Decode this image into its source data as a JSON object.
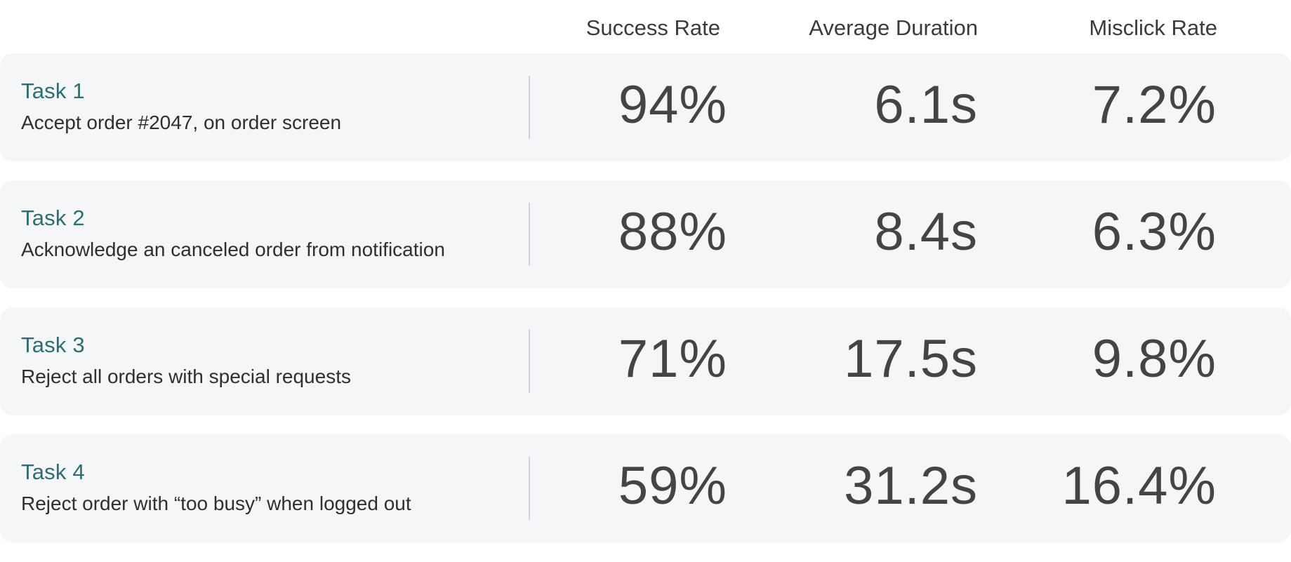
{
  "header": {
    "columns": {
      "success": "Success Rate",
      "duration": "Average Duration",
      "misclick": "Misclick Rate"
    }
  },
  "tasks": [
    {
      "title": "Task 1",
      "description": "Accept order #2047, on order screen",
      "success": "94%",
      "duration": "6.1s",
      "misclick": "7.2%"
    },
    {
      "title": "Task 2",
      "description": "Acknowledge an canceled order from notification",
      "success": "88%",
      "duration": "8.4s",
      "misclick": "6.3%"
    },
    {
      "title": "Task 3",
      "description": "Reject all orders with special requests",
      "success": "71%",
      "duration": "17.5s",
      "misclick": "9.8%"
    },
    {
      "title": "Task 4",
      "description": "Reject order with “too busy” when logged out",
      "success": "59%",
      "duration": "31.2s",
      "misclick": "16.4%"
    }
  ],
  "colors": {
    "task_title": "#2d6e70",
    "row_background": "#f5f6f8",
    "metric_text": "#444444"
  }
}
